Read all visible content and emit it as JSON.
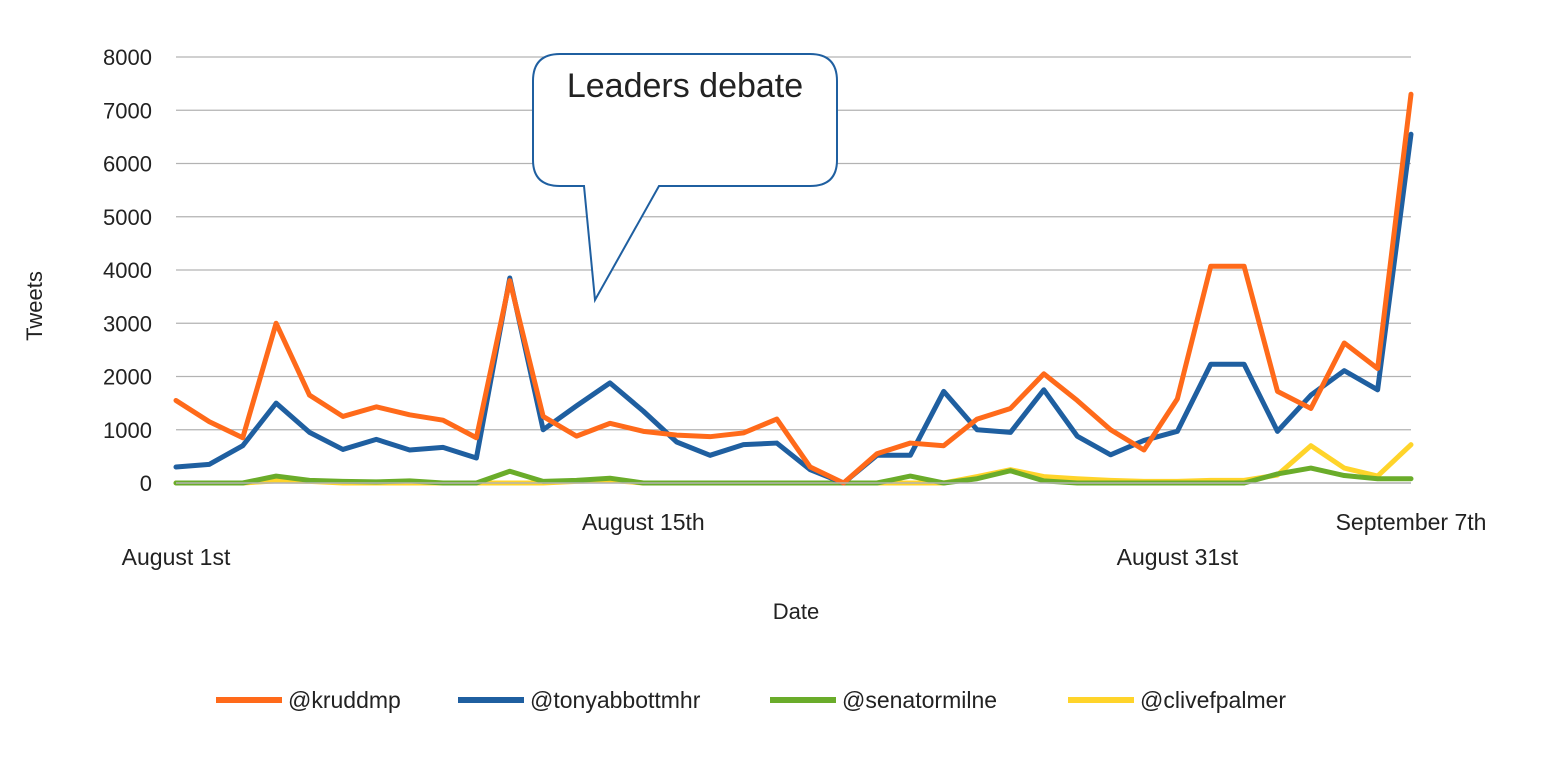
{
  "chart_data": {
    "type": "line",
    "xlabel": "Date",
    "ylabel": "Tweets",
    "ylim": [
      0,
      8000
    ],
    "y_ticks": [
      0,
      1000,
      2000,
      3000,
      4000,
      5000,
      6000,
      7000,
      8000
    ],
    "x": [
      1,
      2,
      3,
      4,
      5,
      6,
      7,
      8,
      9,
      10,
      11,
      12,
      13,
      14,
      15,
      16,
      17,
      18,
      19,
      20,
      21,
      22,
      23,
      24,
      25,
      26,
      27,
      28,
      29,
      30,
      31,
      32,
      33,
      34,
      35,
      36,
      37,
      38
    ],
    "x_labels": [
      {
        "x": 1,
        "label": "August 1st",
        "row": 2
      },
      {
        "x": 15,
        "label": "August 15th",
        "row": 1
      },
      {
        "x": 31,
        "label": "August 31st",
        "row": 2
      },
      {
        "x": 38,
        "label": "September 7th",
        "row": 1
      }
    ],
    "grid": true,
    "legend_position": "bottom",
    "annotation": {
      "text": "Leaders debate",
      "x": 14,
      "y": 3400
    },
    "series": [
      {
        "name": "@kruddmp",
        "color": "#ff6a1a",
        "values": [
          1550,
          1150,
          850,
          3000,
          1650,
          1250,
          1430,
          1280,
          1180,
          850,
          3800,
          1250,
          880,
          1120,
          970,
          900,
          870,
          940,
          1200,
          300,
          0,
          550,
          750,
          700,
          1200,
          1400,
          2050,
          1550,
          1000,
          620,
          1580,
          4070,
          4070,
          1720,
          1400,
          2630,
          2150,
          7300
        ]
      },
      {
        "name": "@tonyabbottmhr",
        "color": "#1f5fa0",
        "values": [
          300,
          350,
          700,
          1500,
          950,
          630,
          820,
          620,
          670,
          470,
          3850,
          1000,
          1450,
          1880,
          1350,
          770,
          520,
          720,
          750,
          250,
          0,
          520,
          520,
          1720,
          1000,
          950,
          1750,
          880,
          530,
          800,
          970,
          2230,
          2230,
          970,
          1650,
          2110,
          1750,
          6550
        ]
      },
      {
        "name": "@senatormilne",
        "color": "#6aac2a",
        "values": [
          0,
          0,
          0,
          130,
          50,
          30,
          20,
          40,
          0,
          0,
          220,
          30,
          50,
          90,
          0,
          0,
          0,
          0,
          0,
          0,
          0,
          0,
          130,
          0,
          80,
          230,
          40,
          0,
          0,
          0,
          0,
          0,
          0,
          170,
          280,
          140,
          80,
          80
        ]
      },
      {
        "name": "@clivefpalmer",
        "color": "#ffd42a",
        "values": [
          0,
          0,
          0,
          40,
          30,
          0,
          0,
          0,
          0,
          0,
          0,
          0,
          30,
          50,
          0,
          0,
          0,
          0,
          0,
          0,
          0,
          0,
          0,
          0,
          120,
          250,
          120,
          80,
          50,
          30,
          30,
          50,
          50,
          150,
          700,
          280,
          130,
          720
        ]
      }
    ]
  }
}
